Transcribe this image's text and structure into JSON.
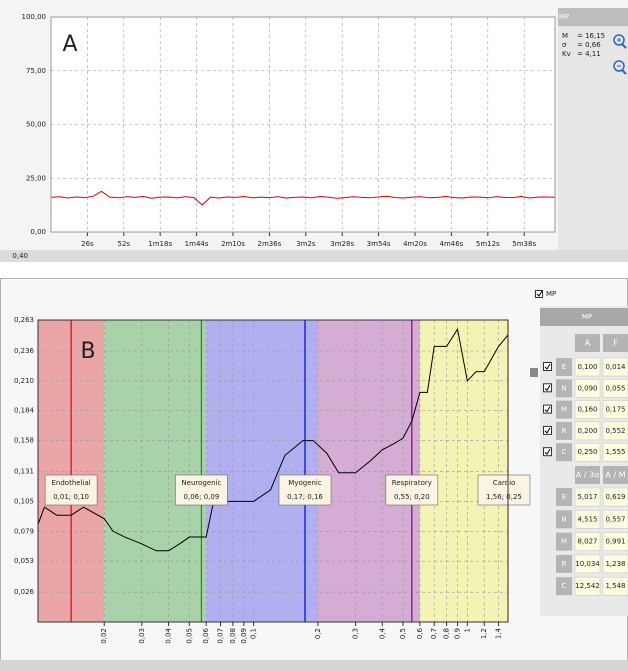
{
  "chart_data": [
    {
      "type": "line",
      "title": "A",
      "xlim": [
        0,
        360
      ],
      "ylim": [
        0,
        100
      ],
      "xticks": [
        {
          "value": 26,
          "label": "26s"
        },
        {
          "value": 52,
          "label": "52s"
        },
        {
          "value": 78,
          "label": "1m18s"
        },
        {
          "value": 104,
          "label": "1m44s"
        },
        {
          "value": 130,
          "label": "2m10s"
        },
        {
          "value": 156,
          "label": "2m36s"
        },
        {
          "value": 182,
          "label": "3m2s"
        },
        {
          "value": 208,
          "label": "3m28s"
        },
        {
          "value": 234,
          "label": "3m54s"
        },
        {
          "value": 260,
          "label": "4m20s"
        },
        {
          "value": 286,
          "label": "4m46s"
        },
        {
          "value": 312,
          "label": "5m12s"
        },
        {
          "value": 338,
          "label": "5m38s"
        }
      ],
      "yticks": [
        {
          "value": 0,
          "label": "0,00"
        },
        {
          "value": 25,
          "label": "25,00"
        },
        {
          "value": 50,
          "label": "50,00"
        },
        {
          "value": 75,
          "label": "75,00"
        },
        {
          "value": 100,
          "label": "100,00"
        }
      ],
      "grid": true,
      "x": [
        0,
        6,
        12,
        18,
        24,
        30,
        36,
        42,
        48,
        54,
        60,
        66,
        72,
        78,
        84,
        90,
        96,
        102,
        108,
        114,
        120,
        126,
        132,
        138,
        144,
        150,
        156,
        162,
        168,
        174,
        180,
        186,
        192,
        198,
        204,
        210,
        216,
        222,
        228,
        234,
        240,
        246,
        252,
        258,
        264,
        270,
        276,
        282,
        288,
        294,
        300,
        306,
        312,
        318,
        324,
        330,
        336,
        342,
        348,
        354,
        360
      ],
      "series": [
        {
          "color": "#e00000",
          "values": [
            16.1,
            16.4,
            15.8,
            16.3,
            16.0,
            16.6,
            18.9,
            16.2,
            15.9,
            16.4,
            16.1,
            16.5,
            15.7,
            16.2,
            16.3,
            15.9,
            16.4,
            16.0,
            12.6,
            16.2,
            15.8,
            16.3,
            16.1,
            16.5,
            15.9,
            16.2,
            16.0,
            16.4,
            15.8,
            16.1,
            16.3,
            15.9,
            16.5,
            16.2,
            15.7,
            16.0,
            16.4,
            16.1,
            15.9,
            16.3,
            16.6,
            16.0,
            15.8,
            16.2,
            16.4,
            15.9,
            16.1,
            16.5,
            16.0,
            15.8,
            16.3,
            16.2,
            15.9,
            16.4,
            16.1,
            16.0,
            16.5,
            15.8,
            16.2,
            16.3,
            16.1
          ]
        }
      ]
    },
    {
      "type": "line",
      "title": "B",
      "xscale": "log",
      "xlim": [
        0.0098,
        1.55
      ],
      "ylim": [
        0,
        0.263
      ],
      "xticks": [
        {
          "value": 0.02,
          "label": "0,02"
        },
        {
          "value": 0.03,
          "label": "0,03"
        },
        {
          "value": 0.04,
          "label": "0,04"
        },
        {
          "value": 0.05,
          "label": "0,05"
        },
        {
          "value": 0.06,
          "label": "0,06"
        },
        {
          "value": 0.07,
          "label": "0,07"
        },
        {
          "value": 0.08,
          "label": "0,08"
        },
        {
          "value": 0.09,
          "label": "0,09"
        },
        {
          "value": 0.1,
          "label": "0,1"
        },
        {
          "value": 0.2,
          "label": "0,2"
        },
        {
          "value": 0.3,
          "label": "0,3"
        },
        {
          "value": 0.4,
          "label": "0,4"
        },
        {
          "value": 0.5,
          "label": "0,5"
        },
        {
          "value": 0.6,
          "label": "0,6"
        },
        {
          "value": 0.7,
          "label": "0,7"
        },
        {
          "value": 0.8,
          "label": "0,8"
        },
        {
          "value": 0.9,
          "label": "0,9"
        },
        1,
        {
          "value": 1.2,
          "label": "1,2"
        },
        {
          "value": 1.4,
          "label": "1,4"
        }
      ],
      "yticks": [
        {
          "value": 0.026,
          "label": "0,026"
        },
        {
          "value": 0.053,
          "label": "0,053"
        },
        {
          "value": 0.079,
          "label": "0,079"
        },
        {
          "value": 0.105,
          "label": "0,105"
        },
        {
          "value": 0.131,
          "label": "0,131"
        },
        {
          "value": 0.158,
          "label": "0,158"
        },
        {
          "value": 0.184,
          "label": "0,184"
        },
        {
          "value": 0.21,
          "label": "0,210"
        },
        {
          "value": 0.236,
          "label": "0,236"
        },
        {
          "value": 0.263,
          "label": "0,263"
        }
      ],
      "grid": true,
      "bands": [
        {
          "name": "Endothelial",
          "from": 0.0098,
          "to": 0.02,
          "color": "#eaa6a6",
          "peak": 0.014,
          "peak_color": "#e00000",
          "label": "0,01; 0,10"
        },
        {
          "name": "Neurogenic",
          "from": 0.02,
          "to": 0.06,
          "color": "#a9d2a9",
          "peak": 0.057,
          "peak_color": "#00a000",
          "label": "0,06; 0,09"
        },
        {
          "name": "Myogenic",
          "from": 0.06,
          "to": 0.2,
          "color": "#b0b0f0",
          "peak": 0.174,
          "peak_color": "#0000e0",
          "label": "0,17; 0,16"
        },
        {
          "name": "Respiratory",
          "from": 0.2,
          "to": 0.6,
          "color": "#d4acd4",
          "peak": 0.55,
          "peak_color": "#800080",
          "label": "0,55; 0,20"
        },
        {
          "name": "Cardio",
          "from": 0.6,
          "to": 1.55,
          "color": "#f3f3b4",
          "peak": 1.55,
          "peak_color": "#c8c800",
          "label": "1,56; 0,25"
        }
      ],
      "x": [
        0.0098,
        0.0105,
        0.012,
        0.014,
        0.016,
        0.02,
        0.022,
        0.025,
        0.03,
        0.035,
        0.04,
        0.045,
        0.05,
        0.06,
        0.065,
        0.07,
        0.08,
        0.09,
        0.1,
        0.12,
        0.14,
        0.17,
        0.19,
        0.22,
        0.25,
        0.3,
        0.35,
        0.4,
        0.45,
        0.5,
        0.55,
        0.6,
        0.65,
        0.7,
        0.8,
        0.9,
        1.0,
        1.1,
        1.2,
        1.4,
        1.55
      ],
      "series": [
        {
          "color": "#000000",
          "values": [
            0.085,
            0.1,
            0.093,
            0.093,
            0.1,
            0.09,
            0.079,
            0.074,
            0.068,
            0.062,
            0.062,
            0.068,
            0.074,
            0.074,
            0.105,
            0.105,
            0.105,
            0.105,
            0.105,
            0.115,
            0.145,
            0.158,
            0.158,
            0.147,
            0.13,
            0.13,
            0.14,
            0.15,
            0.155,
            0.16,
            0.175,
            0.2,
            0.2,
            0.24,
            0.24,
            0.255,
            0.21,
            0.218,
            0.218,
            0.24,
            0.25
          ]
        }
      ]
    }
  ],
  "panel_a": {
    "header": "MP",
    "stats": [
      [
        "M",
        "= 16,15"
      ],
      [
        "σ",
        "= 0,66"
      ],
      [
        "Kv",
        "= 4,11"
      ]
    ],
    "cut_label": "0,40"
  },
  "panel_b": {
    "checkbox_label": "MP",
    "table_header": "MP",
    "columns": [
      "A",
      "F"
    ],
    "rows": [
      [
        "E",
        "0,100",
        "0,014"
      ],
      [
        "N",
        "0,090",
        "0,055"
      ],
      [
        "M",
        "0,160",
        "0,175"
      ],
      [
        "R",
        "0,200",
        "0,552"
      ],
      [
        "C",
        "0,250",
        "1,555"
      ]
    ],
    "ratio_columns": [
      "A / 3σ",
      "A / M"
    ],
    "ratio_rows": [
      [
        "E",
        "5,017",
        "0,619"
      ],
      [
        "N",
        "4,515",
        "0,557"
      ],
      [
        "M",
        "8,027",
        "0,991"
      ],
      [
        "R",
        "10,034",
        "1,238"
      ],
      [
        "C",
        "12,542",
        "1,548"
      ]
    ]
  }
}
